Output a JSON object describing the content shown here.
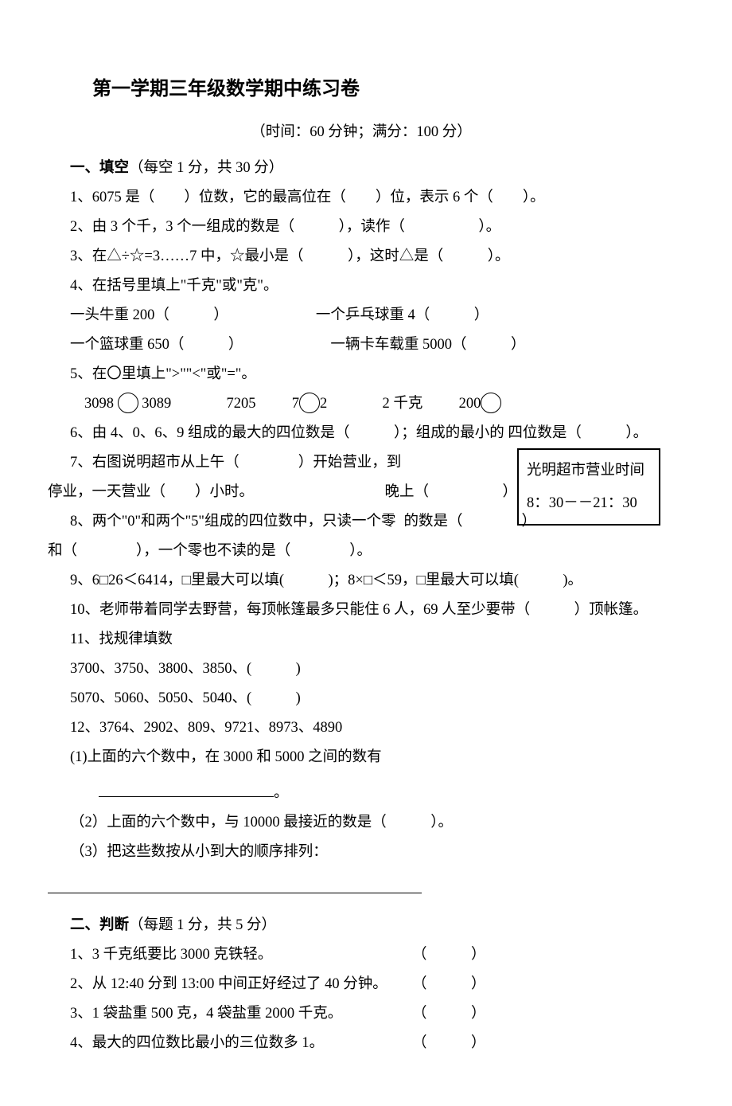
{
  "title": "第一学期三年级数学期中练习卷",
  "subtitle": "（时间：60 分钟；满分：100 分）",
  "section1": {
    "heading_bold": "一、填空",
    "heading_rest": "（每空 1 分，共 30 分）",
    "q1": "1、6075 是（　　）位数，它的最高位在（　　）位，表示 6 个（　　）。",
    "q2": "2、由 3 个千，3 个一组成的数是（　　　），读作（　　　　　）。",
    "q3": "3、在△÷☆=3……7 中，☆最小是（　　　），这时△是（　　　）。",
    "q4": "4、在括号里填上\"千克\"或\"克\"。",
    "q4a_l": "一头牛重 200（　　　）",
    "q4a_r": "一个乒乓球重 4（　　　）",
    "q4b_l": "一个篮球重 650（　　　）",
    "q4b_r": "一辆卡车载重 5000（　　　）",
    "q5": "5、在〇里填上\">\"\"<\"或\"=\"。",
    "q5_a": "3098",
    "q5_b": "3089",
    "q5_c": "7205",
    "q5_d": "7",
    "q5_e": "2",
    "q5_f": "2 千克",
    "q5_g": "200",
    "q6": "6、由 4、0、6、9 组成的最大的四位数是（　　　）；组成的最小的  四位数是（　　　）。",
    "q7_a": "7、右图说明超市从上午（　　　　）开始营业，到",
    "q7_b": "晚上（　　　　　）",
    "q7_c": "停业，一天营业（　　）小时。",
    "box_t": "光明超市营业时间",
    "box_b": "8：30－－21：30",
    "q8_a": "8、两个\"0\"和两个\"5\"组成的四位数中，只读一个零",
    "q8_b": "的数是（　　　　）",
    "q8_c": "和（　　　　），一个零也不读的是（　　　　）。",
    "q9": "9、6□26＜6414，□里最大可以填(　　　)；8×□＜59，□里最大可以填(　　　)。",
    "q10": "10、老师带着同学去野营，每顶帐篷最多只能住 6 人，69 人至少要带（　　　）顶帐篷。",
    "q11": "11、找规律填数",
    "q11a": "3700、3750、3800、3850、(　　　)",
    "q11b": "5070、5060、5050、5040、(　　　)",
    "q12": "12、3764、2902、809、9721、8973、4890",
    "q12a": "(1)上面的六个数中，在 3000 和 5000 之间的数有",
    "q12a_end": "。",
    "q12b": "（2）上面的六个数中，与 10000 最接近的数是（　　　）。",
    "q12c": "（3）把这些数按从小到大的顺序排列："
  },
  "section2": {
    "heading_bold": "二、判断",
    "heading_rest": "（每题 1 分，共 5 分）",
    "rows": [
      "1、3 千克纸要比 3000 克铁轻。",
      "2、从 12:40 分到 13:00 中间正好经过了 40 分钟。",
      "3、1 袋盐重 500 克，4 袋盐重 2000 千克。",
      "4、最大的四位数比最小的三位数多 1。"
    ],
    "paren": "（　　　）"
  }
}
